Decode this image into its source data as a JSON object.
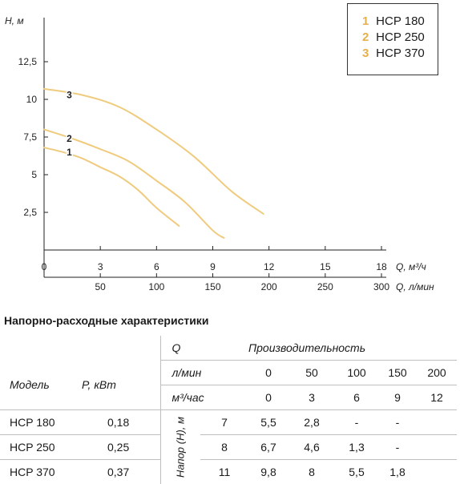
{
  "chart_data": {
    "type": "line",
    "ylabel": "H, м",
    "xlabel": "Q, м³/ч",
    "x2label": "Q, л/мин",
    "yticks": [
      "2,5",
      "5",
      "7,5",
      "10",
      "12,5"
    ],
    "ytick_values": [
      2.5,
      5,
      7.5,
      10,
      12.5
    ],
    "xticks": [
      "0",
      "3",
      "6",
      "9",
      "12",
      "15",
      "18"
    ],
    "xtick_values": [
      0,
      3,
      6,
      9,
      12,
      15,
      18
    ],
    "x2ticks": [
      "50",
      "100",
      "150",
      "200",
      "250",
      "300"
    ],
    "x2tick_values_m3h": [
      3,
      6,
      9,
      12,
      15,
      18
    ],
    "xlim": [
      0,
      18
    ],
    "ylim": [
      0,
      15
    ],
    "grid": false,
    "legend": "top-right",
    "line_color": "#efcb7e",
    "label_color": "#e6b04a",
    "series": [
      {
        "name": "HCP 180",
        "marker": "1",
        "x": [
          0,
          1,
          2,
          3,
          4,
          5,
          6,
          7.2
        ],
        "y": [
          6.8,
          6.5,
          6.1,
          5.5,
          4.9,
          4.0,
          2.8,
          1.6
        ]
      },
      {
        "name": "HCP 250",
        "marker": "2",
        "x": [
          0,
          1.5,
          3,
          4.5,
          6,
          7.5,
          9,
          9.6
        ],
        "y": [
          8.0,
          7.4,
          6.7,
          5.9,
          4.6,
          3.2,
          1.3,
          0.8
        ]
      },
      {
        "name": "HCP 370",
        "marker": "3",
        "x": [
          0,
          2,
          4,
          6,
          8,
          10,
          11.7
        ],
        "y": [
          10.7,
          10.3,
          9.5,
          8.0,
          6.2,
          3.9,
          2.4
        ]
      }
    ]
  },
  "legend": {
    "items": [
      {
        "num": "1",
        "label": "HCP 180"
      },
      {
        "num": "2",
        "label": "HCP 250"
      },
      {
        "num": "3",
        "label": "HCP 370"
      }
    ]
  },
  "table": {
    "title": "Напорно-расходные характеристики",
    "q_label": "Q",
    "perf_label": "Производительность",
    "model_label": "Модель",
    "power_label": "P, кВт",
    "unit_lmin": "л/мин",
    "unit_m3h": "м³/час",
    "lmin_values": [
      "0",
      "50",
      "100",
      "150",
      "200"
    ],
    "m3h_values": [
      "0",
      "3",
      "6",
      "9",
      "12"
    ],
    "head_label": "Напор (H), м",
    "rows": [
      {
        "model": "HCP 180",
        "power": "0,18",
        "values": [
          "7",
          "5,5",
          "2,8",
          "-",
          "-"
        ]
      },
      {
        "model": "HCP 250",
        "power": "0,25",
        "values": [
          "8",
          "6,7",
          "4,6",
          "1,3",
          "-"
        ]
      },
      {
        "model": "HCP 370",
        "power": "0,37",
        "values": [
          "11",
          "9,8",
          "8",
          "5,5",
          "1,8"
        ]
      }
    ]
  }
}
